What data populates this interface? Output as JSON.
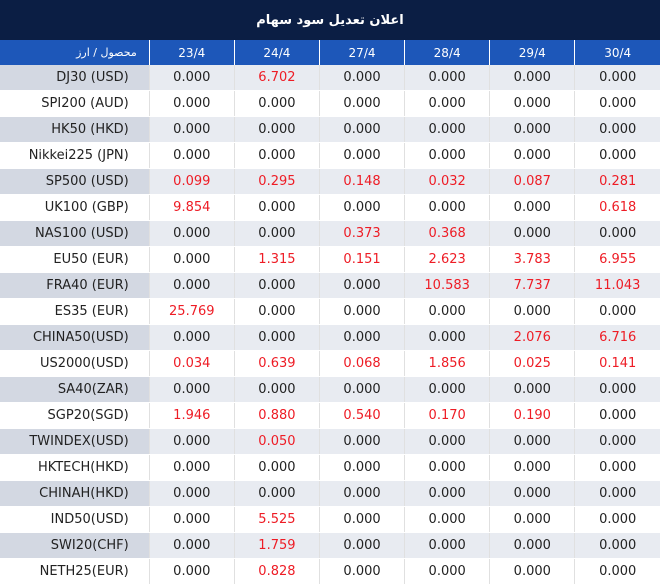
{
  "title": "اعلان تعديل سود سهام",
  "header": {
    "product_label": "محصول / ارز",
    "dates": [
      "23/4",
      "24/4",
      "27/4",
      "28/4",
      "29/4",
      "30/4"
    ]
  },
  "colors": {
    "title_bg": "#0b1e44",
    "header_bg": "#1d57b9",
    "stripe_bg": "#e8ebf1",
    "product_stripe_bg": "#d3d8e2",
    "positive_value": "#ee1c25",
    "zero_value": "#222222"
  },
  "rows": [
    {
      "product": "DJ30 (USD)",
      "values": [
        "0.000",
        "6.702",
        "0.000",
        "0.000",
        "0.000",
        "0.000"
      ]
    },
    {
      "product": "SPI200 (AUD)",
      "values": [
        "0.000",
        "0.000",
        "0.000",
        "0.000",
        "0.000",
        "0.000"
      ]
    },
    {
      "product": "HK50 (HKD)",
      "values": [
        "0.000",
        "0.000",
        "0.000",
        "0.000",
        "0.000",
        "0.000"
      ]
    },
    {
      "product": "Nikkei225 (JPN)",
      "values": [
        "0.000",
        "0.000",
        "0.000",
        "0.000",
        "0.000",
        "0.000"
      ]
    },
    {
      "product": "SP500 (USD)",
      "values": [
        "0.099",
        "0.295",
        "0.148",
        "0.032",
        "0.087",
        "0.281"
      ]
    },
    {
      "product": "UK100 (GBP)",
      "values": [
        "9.854",
        "0.000",
        "0.000",
        "0.000",
        "0.000",
        "0.618"
      ]
    },
    {
      "product": "NAS100 (USD)",
      "values": [
        "0.000",
        "0.000",
        "0.373",
        "0.368",
        "0.000",
        "0.000"
      ]
    },
    {
      "product": "EU50 (EUR)",
      "values": [
        "0.000",
        "1.315",
        "0.151",
        "2.623",
        "3.783",
        "6.955"
      ]
    },
    {
      "product": "FRA40 (EUR)",
      "values": [
        "0.000",
        "0.000",
        "0.000",
        "10.583",
        "7.737",
        "11.043"
      ]
    },
    {
      "product": "ES35 (EUR)",
      "values": [
        "25.769",
        "0.000",
        "0.000",
        "0.000",
        "0.000",
        "0.000"
      ]
    },
    {
      "product": "CHINA50(USD)",
      "values": [
        "0.000",
        "0.000",
        "0.000",
        "0.000",
        "2.076",
        "6.716"
      ]
    },
    {
      "product": "US2000(USD)",
      "values": [
        "0.034",
        "0.639",
        "0.068",
        "1.856",
        "0.025",
        "0.141"
      ]
    },
    {
      "product": "SA40(ZAR)",
      "values": [
        "0.000",
        "0.000",
        "0.000",
        "0.000",
        "0.000",
        "0.000"
      ]
    },
    {
      "product": "SGP20(SGD)",
      "values": [
        "1.946",
        "0.880",
        "0.540",
        "0.170",
        "0.190",
        "0.000"
      ]
    },
    {
      "product": "TWINDEX(USD)",
      "values": [
        "0.000",
        "0.050",
        "0.000",
        "0.000",
        "0.000",
        "0.000"
      ]
    },
    {
      "product": "HKTECH(HKD)",
      "values": [
        "0.000",
        "0.000",
        "0.000",
        "0.000",
        "0.000",
        "0.000"
      ]
    },
    {
      "product": "CHINAH(HKD)",
      "values": [
        "0.000",
        "0.000",
        "0.000",
        "0.000",
        "0.000",
        "0.000"
      ]
    },
    {
      "product": "IND50(USD)",
      "values": [
        "0.000",
        "5.525",
        "0.000",
        "0.000",
        "0.000",
        "0.000"
      ]
    },
    {
      "product": "SWI20(CHF)",
      "values": [
        "0.000",
        "1.759",
        "0.000",
        "0.000",
        "0.000",
        "0.000"
      ]
    },
    {
      "product": "NETH25(EUR)",
      "values": [
        "0.000",
        "0.828",
        "0.000",
        "0.000",
        "0.000",
        "0.000"
      ]
    }
  ]
}
